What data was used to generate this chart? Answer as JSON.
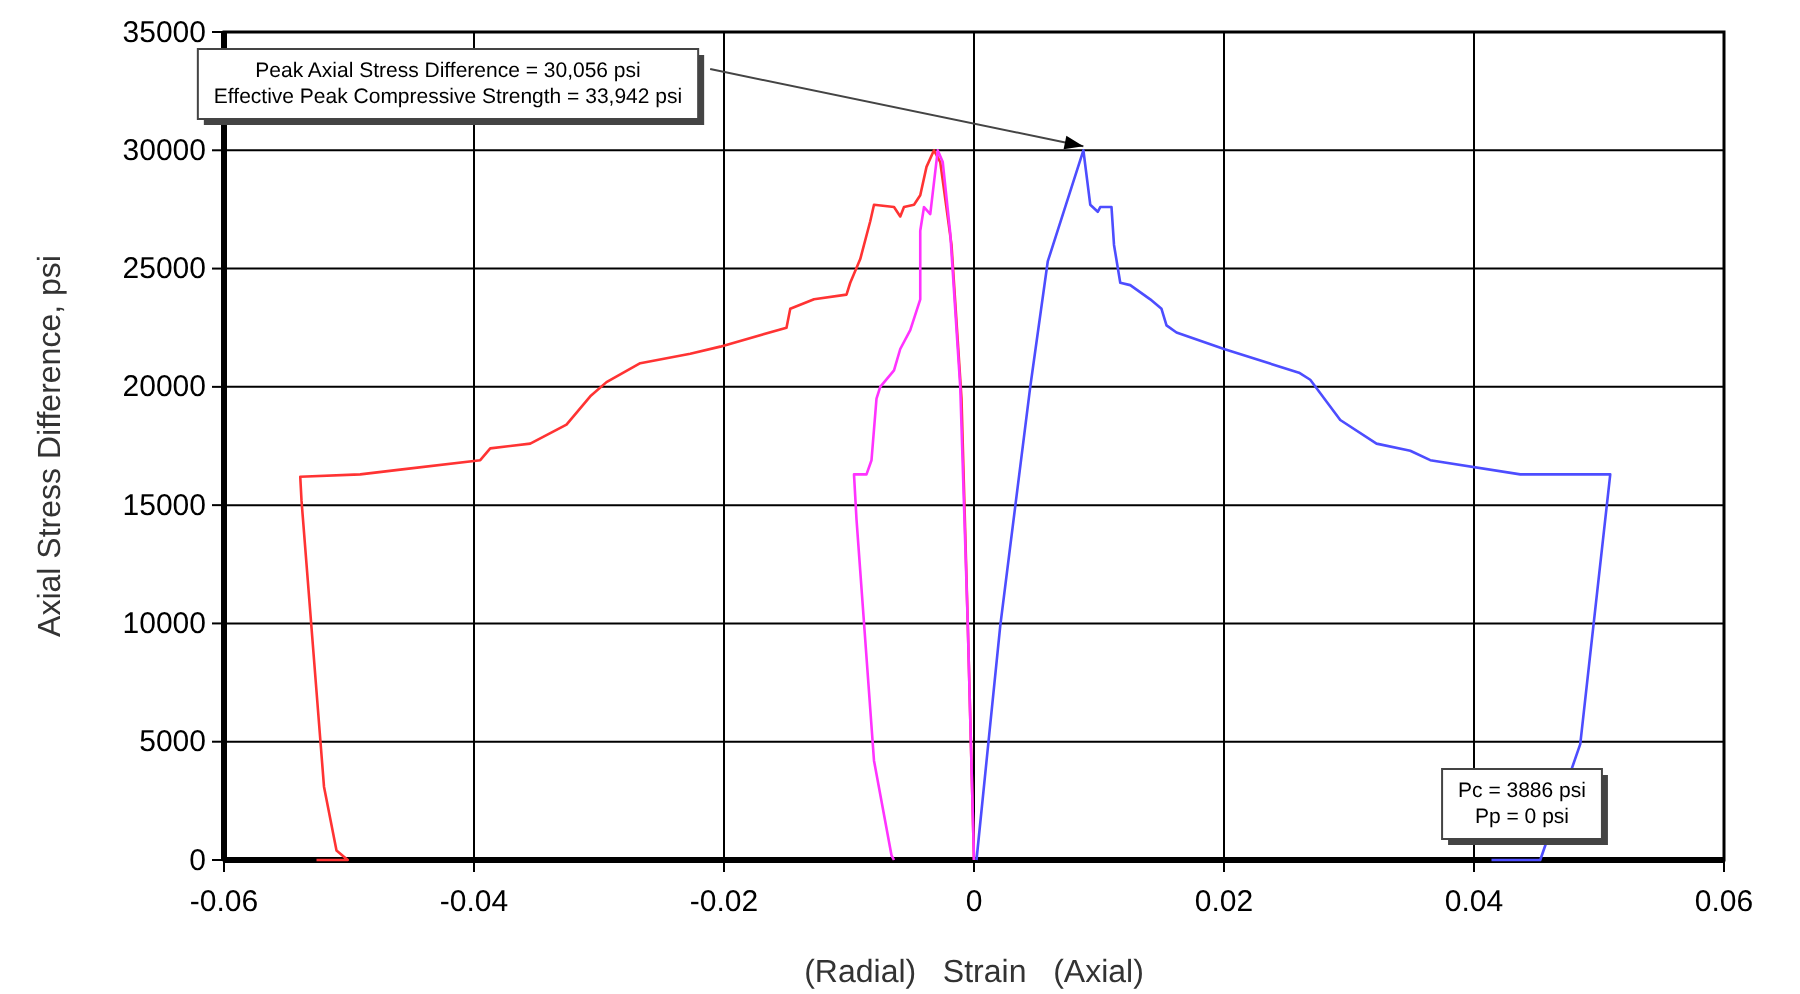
{
  "chart_data": {
    "type": "line",
    "xlabel": "(Radial)   Strain   (Axial)",
    "ylabel": "Axial Stress Difference, psi",
    "xlim": [
      -0.06,
      0.06
    ],
    "xticks": [
      -0.06,
      -0.04,
      -0.02,
      0,
      0.02,
      0.04,
      0.06
    ],
    "ylim": [
      0,
      35000
    ],
    "yticks": [
      0,
      5000,
      10000,
      15000,
      20000,
      25000,
      30000,
      35000
    ],
    "grid": true,
    "legend": false,
    "marker": "none",
    "line_style": "solid",
    "series": [
      {
        "color": "#ff3333",
        "x": [
          0,
          -0.0005,
          -0.001,
          -0.0018,
          -0.0027,
          -0.0032,
          -0.0038,
          -0.0043,
          -0.0048,
          -0.0056,
          -0.0059,
          -0.0064,
          -0.008,
          -0.0083,
          -0.0091,
          -0.0099,
          -0.0102,
          -0.0128,
          -0.0147,
          -0.015,
          -0.0203,
          -0.0227,
          -0.0267,
          -0.0294,
          -0.0307,
          -0.0326,
          -0.0355,
          -0.0387,
          -0.0395,
          -0.0459,
          -0.0491,
          -0.0539,
          -0.0538,
          -0.052,
          -0.051,
          -0.0501,
          -0.0526
        ],
        "values": [
          0,
          10000,
          19500,
          26000,
          29500,
          30000,
          29300,
          28100,
          27700,
          27600,
          27200,
          27600,
          27700,
          27000,
          25400,
          24400,
          23900,
          23700,
          23300,
          22500,
          21700,
          21400,
          21000,
          20200,
          19600,
          18400,
          17600,
          17400,
          16900,
          16500,
          16300,
          16200,
          15200,
          3100,
          400,
          0,
          0
        ]
      },
      {
        "color": "#ff33ff",
        "x": [
          0,
          -0.0005,
          -0.0011,
          -0.0019,
          -0.0025,
          -0.0029,
          -0.0035,
          -0.004,
          -0.0043,
          -0.0043,
          -0.0051,
          -0.0059,
          -0.0064,
          -0.0075,
          -0.0078,
          -0.0082,
          -0.0086,
          -0.0096,
          -0.0094,
          -0.008,
          -0.0066,
          -0.0064
        ],
        "values": [
          0,
          10000,
          20000,
          26500,
          29500,
          30000,
          27300,
          27600,
          26600,
          23700,
          22400,
          21600,
          20700,
          20000,
          19500,
          16900,
          16300,
          16300,
          14400,
          4200,
          200,
          0
        ]
      },
      {
        "color": "#4d4dff",
        "x": [
          0.0002,
          0.0021,
          0.0045,
          0.0059,
          0.00875,
          0.0093,
          0.0099,
          0.0101,
          0.011,
          0.0112,
          0.0117,
          0.0125,
          0.0141,
          0.015,
          0.0154,
          0.0162,
          0.02,
          0.026,
          0.0269,
          0.0293,
          0.0322,
          0.0349,
          0.0365,
          0.0437,
          0.0461,
          0.0509,
          0.0485,
          0.0453,
          0.0414
        ],
        "values": [
          0,
          9900,
          20000,
          25300,
          30000,
          27700,
          27400,
          27600,
          27600,
          26000,
          24400,
          24300,
          23700,
          23300,
          22600,
          22300,
          21600,
          20600,
          20300,
          18600,
          17600,
          17300,
          16900,
          16300,
          16300,
          16300,
          4900,
          0,
          0
        ]
      }
    ],
    "annotations": [
      "Peak Axial Stress Difference = 30,056 psi\nEffective Peak Compressive Strength = 33,942 psi",
      "Pc = 3886 psi\nPp = 0 psi"
    ]
  }
}
